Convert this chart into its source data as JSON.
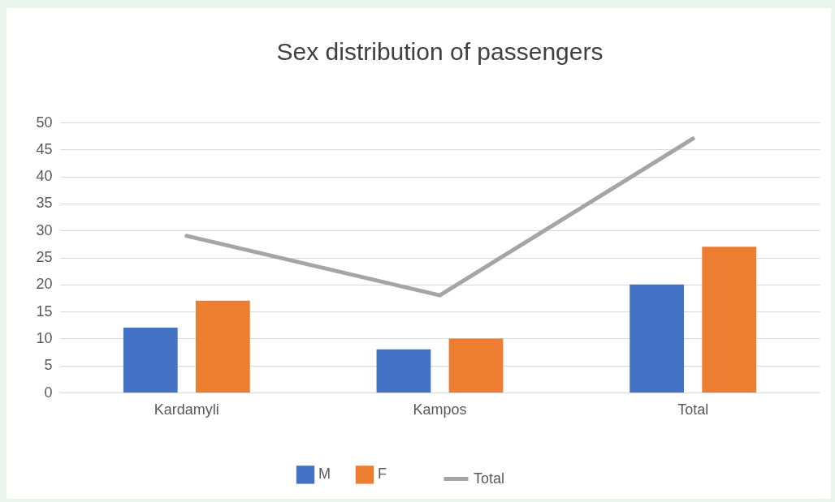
{
  "chart_data": {
    "type": "bar",
    "title": "Sex distribution of passengers",
    "categories": [
      "Kardamyli",
      "Kampos",
      "Total"
    ],
    "series": [
      {
        "name": "M",
        "color": "#4472c4",
        "values": [
          12,
          8,
          20
        ]
      },
      {
        "name": "F",
        "color": "#ed7d31",
        "values": [
          17,
          10,
          27
        ]
      },
      {
        "name": "Total",
        "type": "line",
        "color": "#a5a5a5",
        "values": [
          29,
          18,
          47
        ]
      }
    ],
    "ylim": [
      0,
      50
    ],
    "yticks": [
      0,
      5,
      10,
      15,
      20,
      25,
      30,
      35,
      40,
      45,
      50
    ],
    "grid": "y",
    "legend": "bottom"
  }
}
